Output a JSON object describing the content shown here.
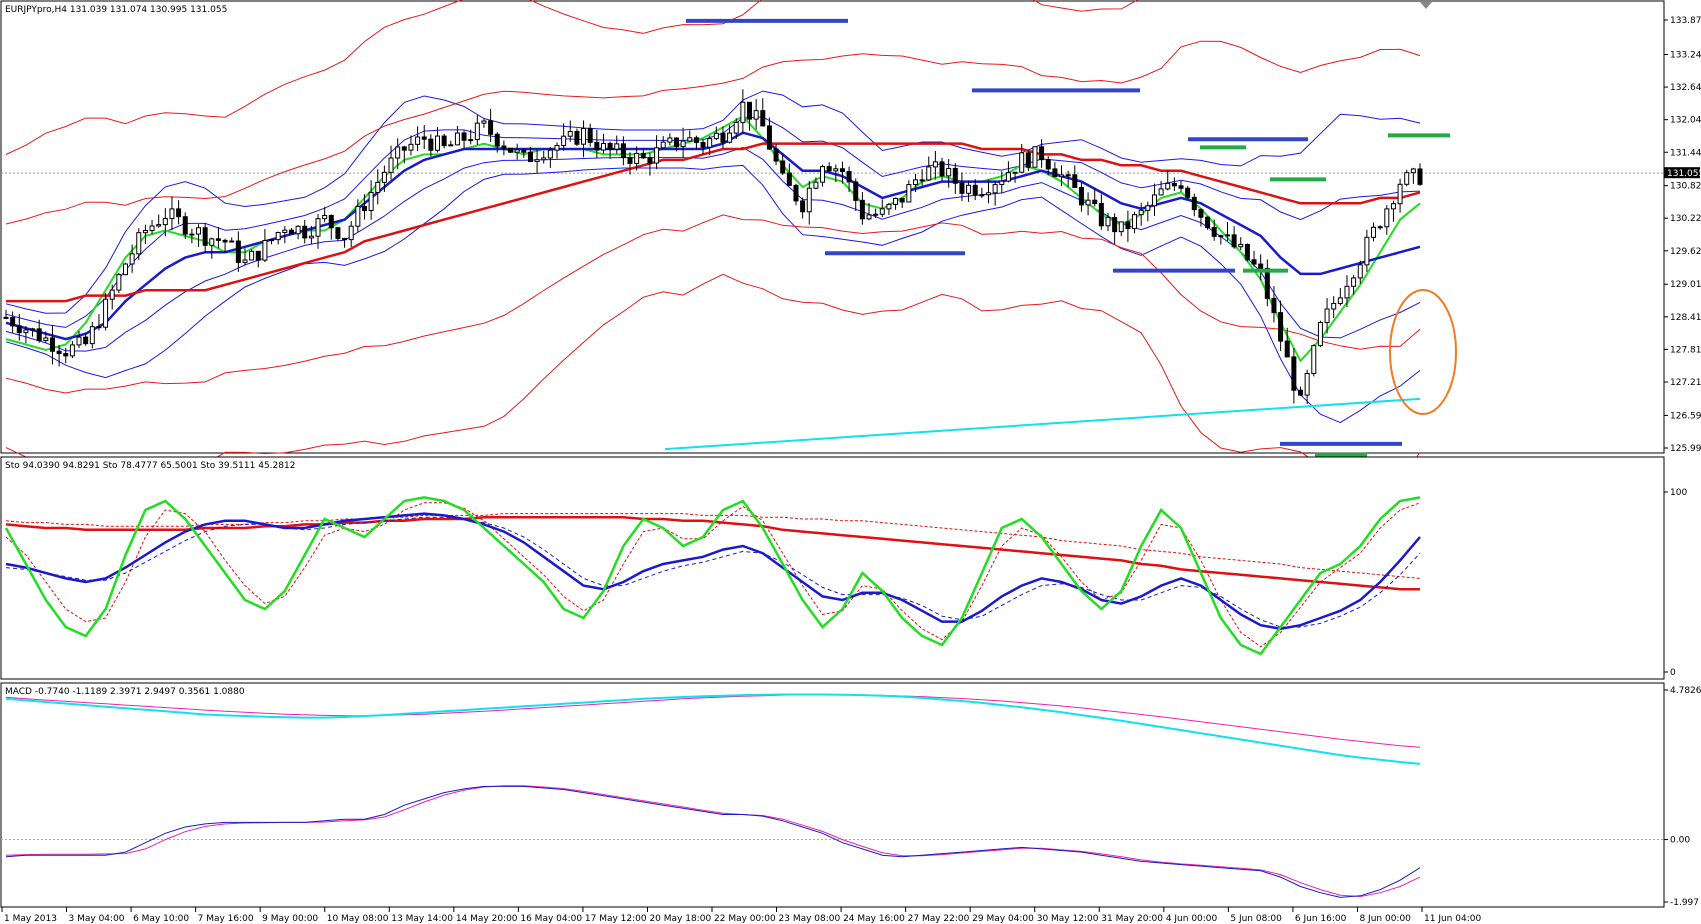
{
  "header": {
    "main": "EURJPYpro,H4  131.039 131.074 130.995 131.055",
    "stoch": "Sto 94.0390 94.8291  Sto 78.4777 65.5001  Sto 39.5111 45.2812",
    "macd": "MACD -0.7740 -1.1189 2.3971 2.9497 0.3561 1.0880"
  },
  "price_box": "131.055",
  "colors": {
    "candle_up": "#ffffff",
    "candle_down": "#000000",
    "bollinger_blue": "#1a1ae6",
    "bollinger_red": "#e61a1a",
    "ma_green": "#22dd22",
    "ma_blue": "#1a1acc",
    "ma_red": "#dd1111",
    "cyan": "#11e0f0",
    "magenta": "#ee22aa",
    "orange": "#f07a22",
    "level_blue": "#3344cc",
    "level_green": "#22aa44"
  },
  "chart_data": [
    {
      "type": "candlestick",
      "symbol": "EURJPYpro",
      "timeframe": "H4",
      "ylim": [
        125.995,
        133.875
      ],
      "yticks": [
        "133.875",
        "133.240",
        "132.640",
        "132.040",
        "131.440",
        "130.825",
        "130.225",
        "129.625",
        "129.010",
        "128.410",
        "127.810",
        "127.210",
        "126.595",
        "125.995"
      ],
      "xticks": [
        "1 May 2013",
        "3 May 04:00",
        "6 May 10:00",
        "7 May 16:00",
        "9 May 00:00",
        "10 May 08:00",
        "13 May 14:00",
        "14 May 20:00",
        "16 May 04:00",
        "17 May 12:00",
        "20 May 18:00",
        "22 May 00:00",
        "23 May 08:00",
        "24 May 16:00",
        "27 May 22:00",
        "29 May 04:00",
        "30 May 12:00",
        "31 May 20:00",
        "4 Jun 00:00",
        "5 Jun 08:00",
        "6 Jun 16:00",
        "8 Jun 00:00",
        "11 Jun 04:00"
      ],
      "current_price": 131.055,
      "close_path": [
        128.4,
        128.2,
        128.0,
        127.8,
        127.9,
        128.6,
        129.4,
        130.0,
        130.3,
        130.1,
        129.9,
        129.8,
        129.4,
        129.7,
        130.1,
        130.0,
        130.2,
        129.9,
        130.5,
        131.1,
        131.5,
        131.7,
        131.5,
        131.7,
        131.9,
        131.6,
        131.3,
        131.5,
        131.6,
        131.8,
        131.5,
        131.4,
        131.3,
        131.5,
        131.7,
        131.6,
        131.8,
        132.3,
        131.9,
        130.9,
        130.5,
        131.3,
        131.1,
        130.3,
        130.3,
        130.6,
        131.1,
        131.1,
        130.8,
        130.8,
        131.0,
        131.3,
        131.4,
        131.0,
        130.6,
        130.2,
        130.0,
        130.3,
        130.7,
        130.9,
        130.3,
        129.9,
        129.6,
        129.2,
        128.0,
        126.8,
        128.2,
        128.9,
        129.5,
        130.2,
        130.9,
        131.0
      ],
      "moving_averages": [
        {
          "color": "#22dd22",
          "values": [
            128.0,
            127.9,
            127.8,
            127.9,
            128.3,
            128.9,
            129.5,
            129.9,
            130.0,
            129.9,
            129.8,
            129.6,
            129.6,
            129.8,
            129.9,
            130.0,
            130.0,
            130.2,
            130.6,
            131.0,
            131.3,
            131.4,
            131.4,
            131.5,
            131.6,
            131.5,
            131.4,
            131.5,
            131.5,
            131.5,
            131.4,
            131.4,
            131.4,
            131.5,
            131.6,
            131.7,
            131.9,
            132.1,
            131.7,
            131.2,
            130.8,
            131.0,
            130.9,
            130.5,
            130.4,
            130.6,
            130.9,
            131.0,
            130.9,
            130.9,
            131.0,
            131.2,
            131.1,
            130.9,
            130.6,
            130.3,
            130.1,
            130.3,
            130.6,
            130.7,
            130.4,
            130.0,
            129.6,
            129.1,
            128.3,
            127.6,
            128.0,
            128.5,
            129.0,
            129.6,
            130.2,
            130.5
          ]
        },
        {
          "color": "#1a1acc",
          "values": [
            128.3,
            128.2,
            128.1,
            128.0,
            128.1,
            128.3,
            128.7,
            129.0,
            129.3,
            129.5,
            129.6,
            129.6,
            129.7,
            129.8,
            129.9,
            130.0,
            130.1,
            130.2,
            130.5,
            130.8,
            131.1,
            131.3,
            131.4,
            131.5,
            131.5,
            131.5,
            131.5,
            131.5,
            131.5,
            131.5,
            131.5,
            131.5,
            131.5,
            131.5,
            131.5,
            131.5,
            131.6,
            131.8,
            131.7,
            131.4,
            131.1,
            131.1,
            131.0,
            130.8,
            130.6,
            130.7,
            130.8,
            130.9,
            130.9,
            130.9,
            130.9,
            131.0,
            131.1,
            131.0,
            130.9,
            130.7,
            130.5,
            130.4,
            130.5,
            130.6,
            130.5,
            130.3,
            130.1,
            129.9,
            129.5,
            129.2,
            129.2,
            129.3,
            129.4,
            129.5,
            129.6,
            129.7
          ]
        },
        {
          "color": "#dd1111",
          "values": [
            128.7,
            128.7,
            128.7,
            128.7,
            128.8,
            128.8,
            128.8,
            128.9,
            128.9,
            128.9,
            128.9,
            129.0,
            129.1,
            129.2,
            129.3,
            129.4,
            129.5,
            129.6,
            129.8,
            129.9,
            130.0,
            130.1,
            130.2,
            130.3,
            130.4,
            130.5,
            130.6,
            130.7,
            130.8,
            130.9,
            131.0,
            131.1,
            131.2,
            131.3,
            131.3,
            131.4,
            131.5,
            131.5,
            131.6,
            131.6,
            131.6,
            131.6,
            131.6,
            131.6,
            131.6,
            131.6,
            131.6,
            131.6,
            131.6,
            131.5,
            131.5,
            131.5,
            131.4,
            131.4,
            131.3,
            131.3,
            131.2,
            131.2,
            131.1,
            131.1,
            131.0,
            130.9,
            130.8,
            130.7,
            130.6,
            130.5,
            130.5,
            130.5,
            130.5,
            130.6,
            130.6,
            130.7
          ]
        }
      ],
      "cyan_line": {
        "start": 125.9,
        "end": 126.9
      },
      "annotations": {
        "blue_levels": [
          133.86,
          132.58,
          129.58,
          129.26,
          131.68,
          126.07
        ],
        "green_levels": [
          131.75,
          131.53,
          130.94,
          129.26,
          125.87
        ]
      }
    },
    {
      "type": "line",
      "name": "Stochastic",
      "ylim": [
        0,
        100
      ],
      "yticks": [
        "100",
        "0"
      ],
      "green": [
        80,
        60,
        40,
        25,
        20,
        35,
        65,
        90,
        95,
        85,
        70,
        55,
        40,
        35,
        45,
        65,
        85,
        80,
        75,
        85,
        95,
        97,
        95,
        90,
        80,
        70,
        60,
        50,
        35,
        30,
        45,
        70,
        85,
        80,
        70,
        75,
        90,
        95,
        80,
        60,
        40,
        25,
        35,
        55,
        45,
        30,
        20,
        15,
        30,
        55,
        80,
        85,
        75,
        60,
        45,
        35,
        45,
        70,
        90,
        80,
        55,
        30,
        15,
        10,
        25,
        40,
        55,
        60,
        70,
        85,
        95,
        97
      ],
      "red": [
        75,
        65,
        50,
        35,
        28,
        30,
        50,
        75,
        90,
        88,
        78,
        62,
        48,
        38,
        42,
        58,
        76,
        80,
        78,
        82,
        90,
        94,
        94,
        91,
        84,
        74,
        64,
        54,
        42,
        34,
        40,
        60,
        78,
        80,
        74,
        74,
        84,
        92,
        84,
        66,
        48,
        32,
        34,
        48,
        46,
        34,
        24,
        18,
        28,
        48,
        70,
        80,
        76,
        64,
        50,
        40,
        44,
        62,
        82,
        80,
        62,
        40,
        22,
        14,
        22,
        36,
        50,
        58,
        66,
        80,
        90,
        94
      ],
      "blue": [
        60,
        58,
        55,
        52,
        50,
        52,
        58,
        65,
        72,
        78,
        82,
        84,
        84,
        82,
        80,
        80,
        82,
        84,
        85,
        86,
        87,
        88,
        87,
        85,
        82,
        78,
        72,
        64,
        56,
        48,
        46,
        50,
        56,
        60,
        62,
        64,
        68,
        70,
        66,
        58,
        50,
        42,
        40,
        44,
        44,
        40,
        34,
        28,
        28,
        34,
        42,
        48,
        52,
        50,
        46,
        40,
        38,
        42,
        48,
        52,
        48,
        40,
        32,
        26,
        24,
        26,
        30,
        34,
        40,
        50,
        62,
        75
      ],
      "blue_dashed": [
        58,
        57,
        55,
        53,
        51,
        51,
        55,
        61,
        67,
        73,
        78,
        81,
        82,
        82,
        80,
        79,
        80,
        82,
        83,
        84,
        85,
        86,
        86,
        85,
        83,
        80,
        75,
        68,
        60,
        52,
        48,
        48,
        52,
        56,
        59,
        61,
        64,
        67,
        66,
        61,
        54,
        47,
        43,
        43,
        43,
        41,
        37,
        31,
        29,
        31,
        37,
        43,
        48,
        49,
        47,
        43,
        40,
        40,
        44,
        48,
        47,
        42,
        35,
        29,
        25,
        25,
        27,
        31,
        36,
        44,
        54,
        66
      ],
      "red_thick": [
        82,
        81,
        80,
        80,
        79,
        79,
        79,
        79,
        79,
        79,
        80,
        80,
        80,
        81,
        81,
        82,
        82,
        83,
        83,
        84,
        84,
        85,
        85,
        85,
        86,
        86,
        86,
        86,
        86,
        86,
        86,
        86,
        85,
        85,
        84,
        84,
        83,
        82,
        81,
        79,
        78,
        77,
        76,
        75,
        74,
        73,
        72,
        71,
        70,
        69,
        68,
        67,
        66,
        65,
        64,
        63,
        62,
        60,
        59,
        57,
        56,
        55,
        54,
        53,
        52,
        51,
        50,
        49,
        48,
        47,
        46,
        46
      ],
      "red_dotted": [
        84,
        83,
        83,
        82,
        82,
        81,
        81,
        81,
        81,
        81,
        82,
        82,
        82,
        83,
        83,
        84,
        84,
        85,
        85,
        86,
        86,
        87,
        87,
        87,
        87,
        88,
        88,
        88,
        88,
        88,
        88,
        88,
        88,
        88,
        88,
        87,
        87,
        87,
        86,
        86,
        85,
        85,
        84,
        84,
        83,
        82,
        81,
        80,
        79,
        78,
        77,
        76,
        75,
        73,
        72,
        71,
        70,
        68,
        67,
        66,
        64,
        63,
        62,
        61,
        60,
        58,
        57,
        56,
        55,
        54,
        53,
        52
      ]
    },
    {
      "type": "line",
      "name": "MACD",
      "ylim": [
        -1.997,
        4.7826
      ],
      "yticks": [
        "4.7826",
        "0.00",
        "-1.997"
      ],
      "cyan": [
        4.5,
        4.45,
        4.4,
        4.35,
        4.3,
        4.25,
        4.2,
        4.15,
        4.1,
        4.05,
        4.0,
        3.97,
        3.95,
        3.93,
        3.91,
        3.9,
        3.9,
        3.92,
        3.95,
        3.98,
        4.02,
        4.06,
        4.1,
        4.14,
        4.18,
        4.22,
        4.26,
        4.3,
        4.34,
        4.38,
        4.42,
        4.46,
        4.5,
        4.53,
        4.56,
        4.58,
        4.6,
        4.62,
        4.63,
        4.64,
        4.64,
        4.64,
        4.63,
        4.62,
        4.6,
        4.57,
        4.53,
        4.48,
        4.43,
        4.37,
        4.3,
        4.23,
        4.15,
        4.07,
        3.98,
        3.89,
        3.8,
        3.7,
        3.6,
        3.5,
        3.4,
        3.3,
        3.2,
        3.1,
        3.0,
        2.9,
        2.8,
        2.7,
        2.62,
        2.55,
        2.48,
        2.42
      ],
      "magenta": [
        4.55,
        4.5,
        4.46,
        4.42,
        4.38,
        4.34,
        4.3,
        4.26,
        4.22,
        4.18,
        4.14,
        4.1,
        4.07,
        4.04,
        4.01,
        3.99,
        3.97,
        3.96,
        3.96,
        3.97,
        3.99,
        4.01,
        4.04,
        4.07,
        4.1,
        4.14,
        4.18,
        4.22,
        4.26,
        4.3,
        4.34,
        4.38,
        4.42,
        4.46,
        4.5,
        4.53,
        4.56,
        4.58,
        4.6,
        4.62,
        4.63,
        4.63,
        4.63,
        4.62,
        4.61,
        4.59,
        4.57,
        4.54,
        4.51,
        4.47,
        4.43,
        4.38,
        4.33,
        4.27,
        4.21,
        4.14,
        4.07,
        4.0,
        3.93,
        3.85,
        3.77,
        3.69,
        3.61,
        3.53,
        3.45,
        3.37,
        3.29,
        3.21,
        3.14,
        3.07,
        3.0,
        2.95
      ],
      "blue": [
        -0.55,
        -0.5,
        -0.5,
        -0.5,
        -0.5,
        -0.5,
        -0.4,
        -0.1,
        0.2,
        0.4,
        0.5,
        0.55,
        0.55,
        0.55,
        0.55,
        0.55,
        0.6,
        0.65,
        0.65,
        0.8,
        1.1,
        1.3,
        1.5,
        1.62,
        1.7,
        1.7,
        1.7,
        1.65,
        1.6,
        1.5,
        1.4,
        1.3,
        1.2,
        1.1,
        1.0,
        0.9,
        0.8,
        0.8,
        0.75,
        0.6,
        0.4,
        0.2,
        -0.1,
        -0.3,
        -0.5,
        -0.55,
        -0.5,
        -0.45,
        -0.4,
        -0.35,
        -0.3,
        -0.25,
        -0.3,
        -0.35,
        -0.4,
        -0.5,
        -0.6,
        -0.7,
        -0.75,
        -0.8,
        -0.85,
        -0.9,
        -0.95,
        -1.0,
        -1.2,
        -1.5,
        -1.7,
        -1.85,
        -1.8,
        -1.6,
        -1.3,
        -0.9
      ],
      "pink": [
        -0.5,
        -0.48,
        -0.47,
        -0.47,
        -0.47,
        -0.46,
        -0.45,
        -0.3,
        0.0,
        0.25,
        0.42,
        0.5,
        0.53,
        0.54,
        0.55,
        0.55,
        0.56,
        0.6,
        0.63,
        0.72,
        0.95,
        1.2,
        1.42,
        1.58,
        1.68,
        1.72,
        1.72,
        1.68,
        1.63,
        1.54,
        1.44,
        1.34,
        1.24,
        1.14,
        1.04,
        0.94,
        0.84,
        0.8,
        0.77,
        0.65,
        0.46,
        0.26,
        0.0,
        -0.22,
        -0.42,
        -0.52,
        -0.52,
        -0.48,
        -0.43,
        -0.38,
        -0.33,
        -0.28,
        -0.28,
        -0.33,
        -0.38,
        -0.46,
        -0.55,
        -0.65,
        -0.72,
        -0.78,
        -0.82,
        -0.87,
        -0.92,
        -0.97,
        -1.12,
        -1.38,
        -1.6,
        -1.78,
        -1.82,
        -1.7,
        -1.5,
        -1.2
      ]
    }
  ]
}
